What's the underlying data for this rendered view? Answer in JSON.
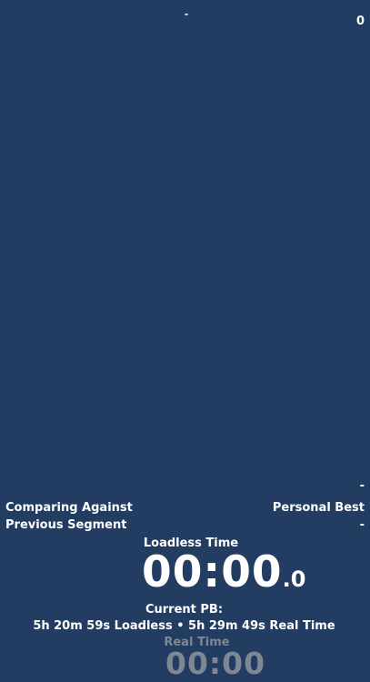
{
  "header": {
    "top_dash": "-",
    "attempt_count": "0"
  },
  "splits": {
    "empty_dash": "-"
  },
  "info": {
    "comparing_label": "Comparing Against",
    "comparing_value": "Personal Best",
    "previous_segment_label": "Previous Segment",
    "previous_segment_value": "-"
  },
  "timer": {
    "label": "Loadless Time",
    "main": "00:00",
    "fraction": ".0"
  },
  "personal_best": {
    "title": "Current PB:",
    "value": "5h 20m 59s Loadless • 5h 29m 49s Real Time"
  },
  "real_time": {
    "label": "Real Time",
    "timer": "00:00"
  },
  "colors": {
    "background": "#223d61",
    "text": "#ffffff",
    "muted": "#7f8793"
  }
}
